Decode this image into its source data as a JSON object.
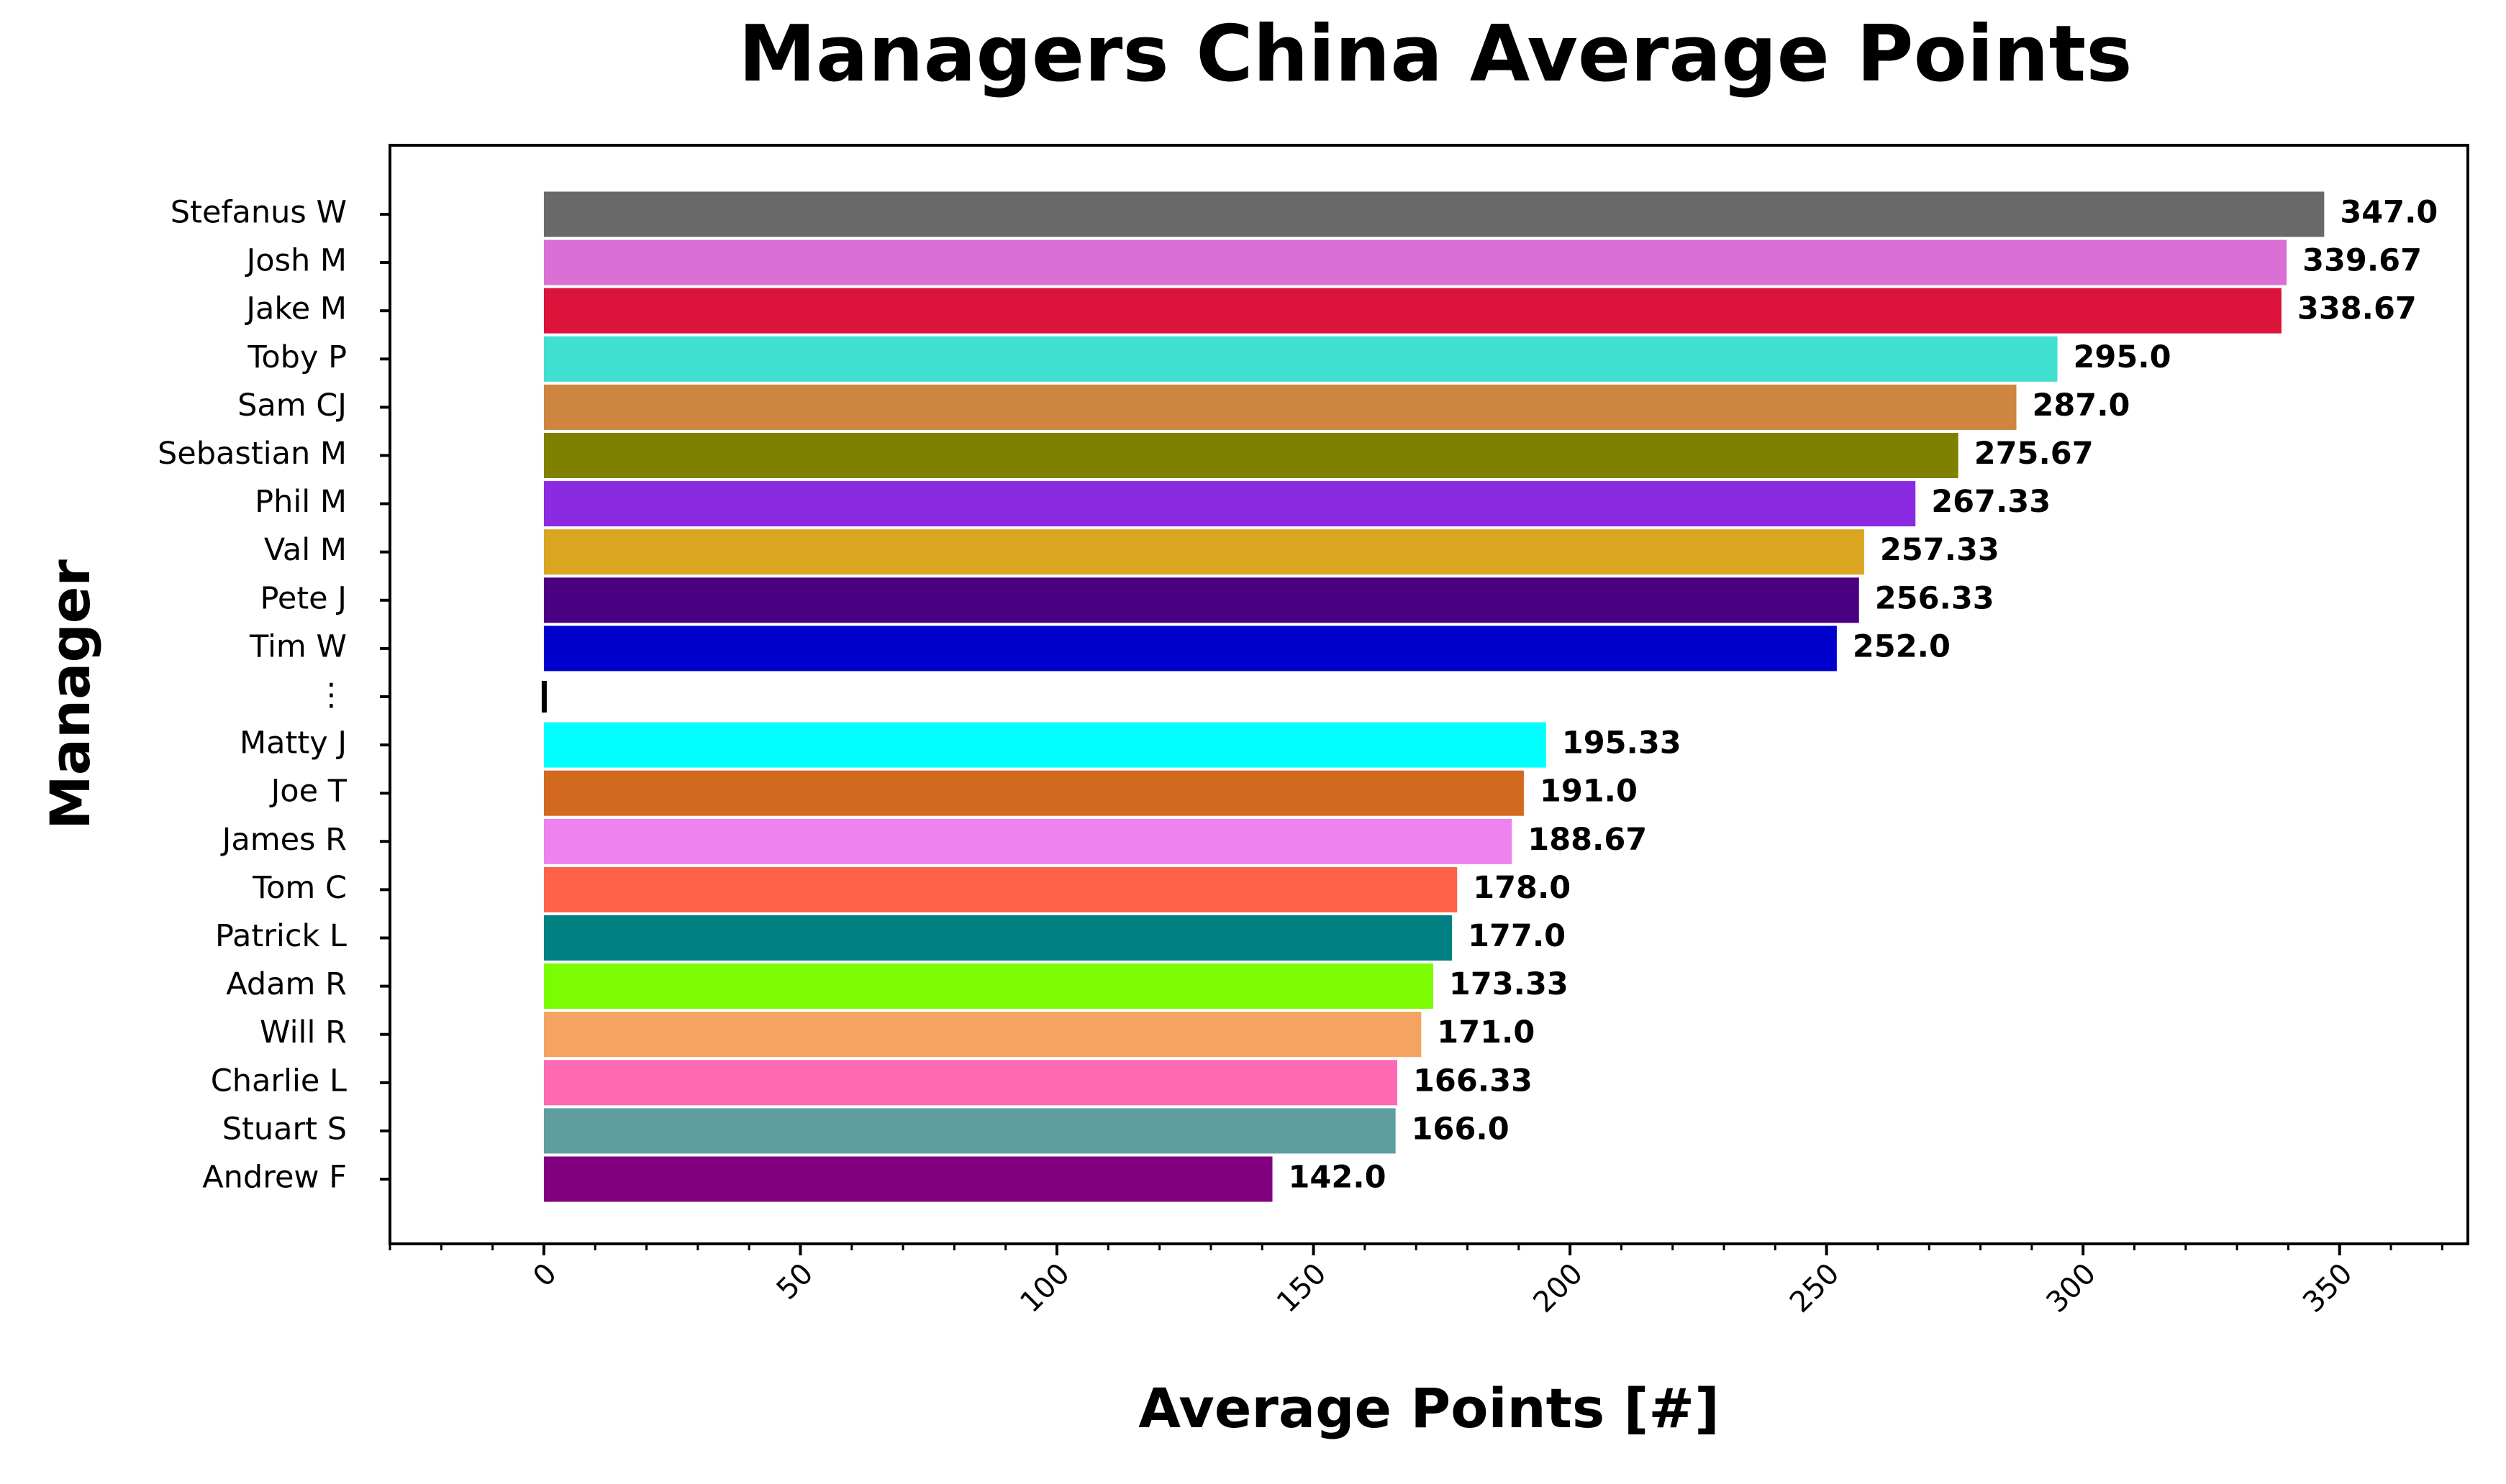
{
  "chart_data": {
    "type": "bar",
    "orientation": "horizontal",
    "title": "Managers China Average Points",
    "xlabel": "Average Points [#]",
    "ylabel": "Manager",
    "xlim": [
      -30,
      375
    ],
    "xticks": [
      "0",
      "50",
      "100",
      "150",
      "200",
      "250",
      "300",
      "350"
    ],
    "xtick_values": [
      0,
      50,
      100,
      150,
      200,
      250,
      300,
      350
    ],
    "grid": false,
    "legend": "none",
    "categories": [
      "Stefanus W",
      "Josh M",
      "Jake M",
      "Toby P",
      "Sam CJ",
      "Sebastian M",
      "Phil M",
      "Val M",
      "Pete J",
      "Tim W",
      "⋮",
      "Matty J",
      "Joe T",
      "James R",
      "Tom C",
      "Patrick L",
      "Adam R",
      "Will R",
      "Charlie L",
      "Stuart S",
      "Andrew F"
    ],
    "values": [
      347.0,
      339.67,
      338.67,
      295.0,
      287.0,
      275.67,
      267.33,
      257.33,
      256.33,
      252.0,
      0,
      195.33,
      191.0,
      188.67,
      178.0,
      177.0,
      173.33,
      171.0,
      166.33,
      166.0,
      142.0
    ],
    "value_labels": [
      "347.0",
      "339.67",
      "338.67",
      "295.0",
      "287.0",
      "275.67",
      "267.33",
      "257.33",
      "256.33",
      "252.0",
      "",
      "195.33",
      "191.0",
      "188.67",
      "178.0",
      "177.0",
      "173.33",
      "171.0",
      "166.33",
      "166.0",
      "142.0"
    ],
    "colors": [
      "#696969",
      "#da70d6",
      "#dc143c",
      "#40e0d0",
      "#cd853f",
      "#808000",
      "#8a2be2",
      "#daa520",
      "#4b0082",
      "#0000cd",
      "#000000",
      "#00ffff",
      "#d2691e",
      "#ee82ee",
      "#ff6347",
      "#008080",
      "#7cfc00",
      "#f4a460",
      "#ff69b4",
      "#5f9ea0",
      "#800080"
    ]
  }
}
